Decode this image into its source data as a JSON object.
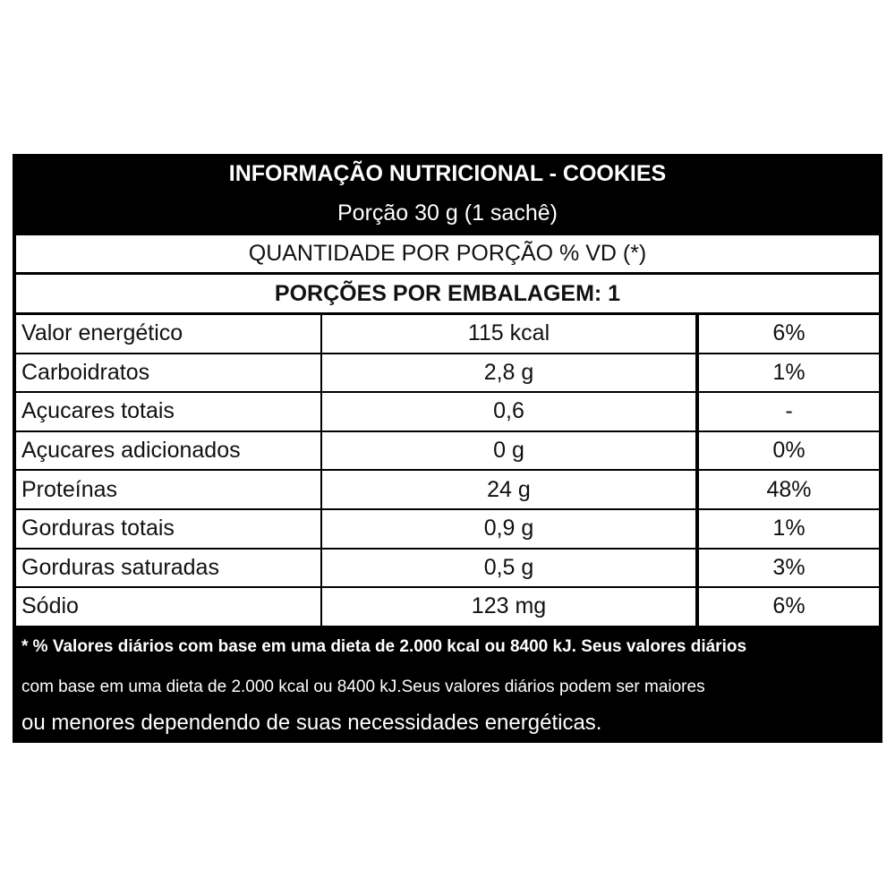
{
  "header": {
    "title": "INFORMAÇÃO NUTRICIONAL - COOKIES",
    "subtitle": "Porção 30 g (1 sachê)"
  },
  "table": {
    "heading1": "QUANTIDADE POR PORÇÃO % VD (*)",
    "heading2": "PORÇÕES POR EMBALAGEM: 1",
    "rows": [
      [
        "Valor energético",
        "115 kcal",
        "6%"
      ],
      [
        "Carboidratos",
        "2,8 g",
        "1%"
      ],
      [
        "Açucares totais",
        "0,6",
        "-"
      ],
      [
        "Açucares adicionados",
        "0 g",
        "0%"
      ],
      [
        "Proteínas",
        "24 g",
        "48%"
      ],
      [
        "Gorduras totais",
        "0,9 g",
        "1%"
      ],
      [
        "Gorduras saturadas",
        "0,5 g",
        "3%"
      ],
      [
        "Sódio",
        "123 mg",
        "6%"
      ]
    ]
  },
  "footer": {
    "lines": [
      "* % Valores diários com base em uma dieta de 2.000 kcal ou 8400 kJ. Seus valores diários",
      "com base em uma dieta de 2.000 kcal ou 8400 kJ.Seus valores diários podem ser maiores",
      "ou menores dependendo de suas necessidades energéticas."
    ]
  }
}
